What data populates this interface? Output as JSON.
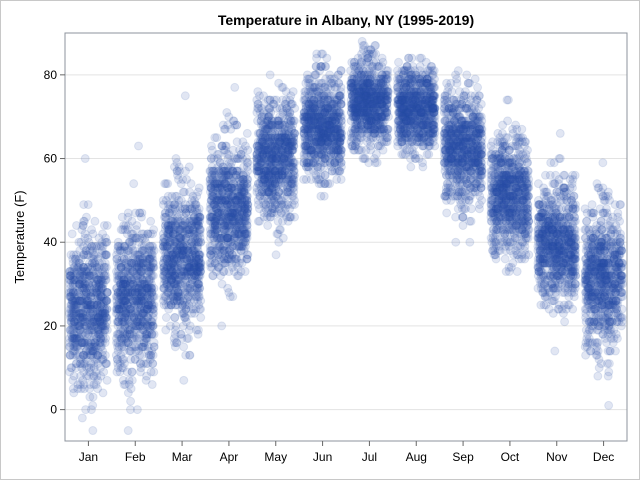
{
  "chart_data": {
    "type": "scatter",
    "title": "Temperature in Albany, NY (1995-2019)",
    "xlabel": "",
    "ylabel": "Temperature (F)",
    "categories": [
      "Jan",
      "Feb",
      "Mar",
      "Apr",
      "May",
      "Jun",
      "Jul",
      "Aug",
      "Sep",
      "Oct",
      "Nov",
      "Dec"
    ],
    "yticks": [
      0,
      20,
      40,
      60,
      80
    ],
    "ylim": [
      -7.5,
      90
    ],
    "grid": true,
    "legend": "none",
    "point_color": "#2a4fa8",
    "jittered": true,
    "month_summary": [
      {
        "month": "Jan",
        "min": -5,
        "max": 60,
        "mean": 24,
        "sd": 9
      },
      {
        "month": "Feb",
        "min": -5,
        "max": 63,
        "mean": 26,
        "sd": 9
      },
      {
        "month": "Mar",
        "min": 7,
        "max": 75,
        "mean": 36,
        "sd": 8
      },
      {
        "month": "Apr",
        "min": 20,
        "max": 77,
        "mean": 48,
        "sd": 8
      },
      {
        "month": "May",
        "min": 37,
        "max": 80,
        "mean": 60,
        "sd": 7
      },
      {
        "month": "Jun",
        "min": 51,
        "max": 85,
        "mean": 68,
        "sd": 6
      },
      {
        "month": "Jul",
        "min": 59,
        "max": 88,
        "mean": 73,
        "sd": 5
      },
      {
        "month": "Aug",
        "min": 58,
        "max": 84,
        "mean": 72,
        "sd": 5
      },
      {
        "month": "Sep",
        "min": 40,
        "max": 81,
        "mean": 63,
        "sd": 7
      },
      {
        "month": "Oct",
        "min": 33,
        "max": 74,
        "mean": 51,
        "sd": 7
      },
      {
        "month": "Nov",
        "min": 14,
        "max": 66,
        "mean": 40,
        "sd": 7
      },
      {
        "month": "Dec",
        "min": 1,
        "max": 59,
        "mean": 31,
        "sd": 8
      }
    ]
  }
}
